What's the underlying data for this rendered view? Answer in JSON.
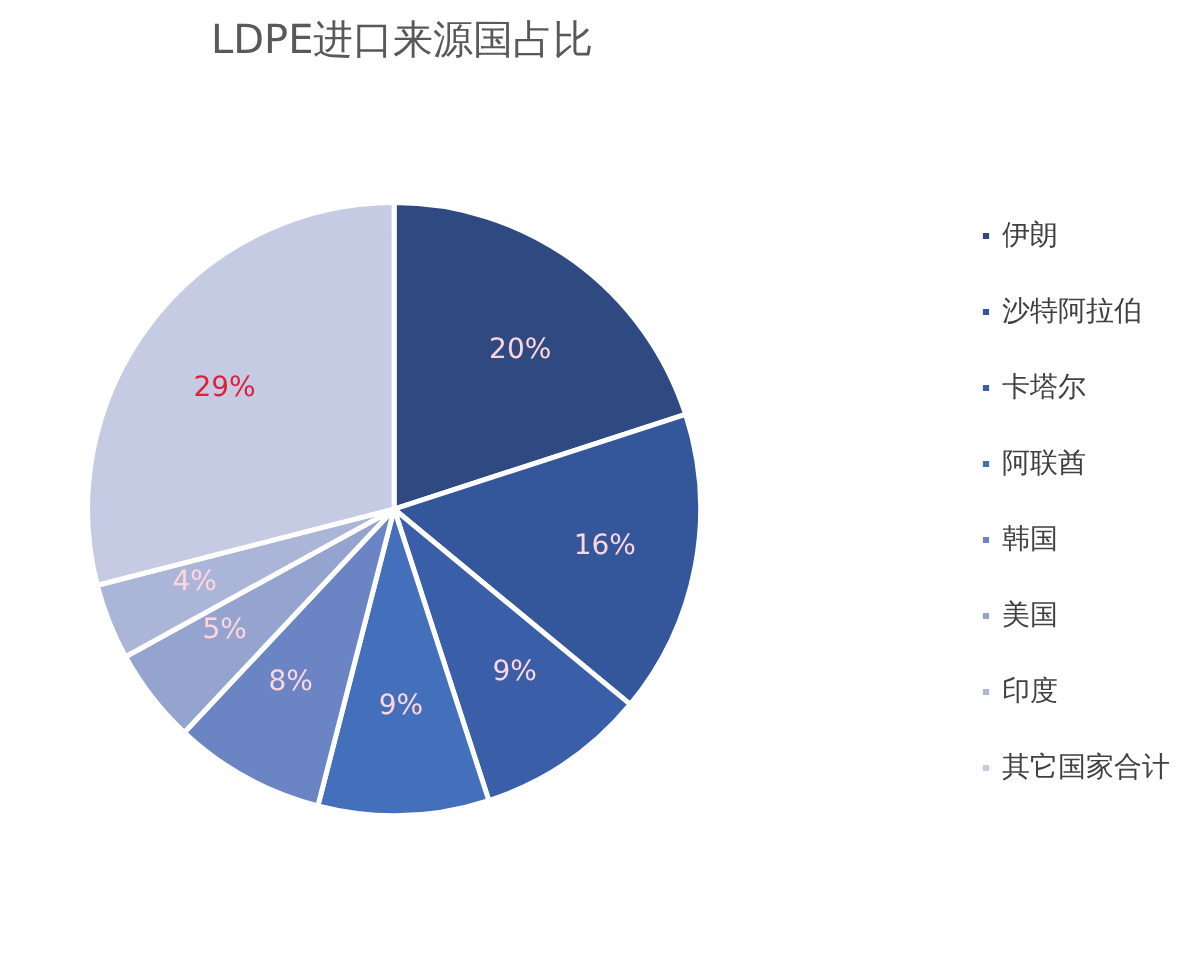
{
  "chart_data": {
    "type": "pie",
    "title": "LDPE进口来源国占比",
    "categories": [
      "伊朗",
      "沙特阿拉伯",
      "卡塔尔",
      "阿联酋",
      "韩国",
      "美国",
      "印度",
      "其它国家合计"
    ],
    "values": [
      20,
      16,
      9,
      9,
      8,
      5,
      4,
      29
    ],
    "colors": [
      "#2e4a80",
      "#34569a",
      "#3a5ea8",
      "#4470bb",
      "#6a84c4",
      "#95a3cf",
      "#aab5d8",
      "#c5cbe3"
    ],
    "value_labels": [
      "20%",
      "16%",
      "9%",
      "9%",
      "8%",
      "5%",
      "4%",
      "29%"
    ],
    "legend": "right"
  }
}
